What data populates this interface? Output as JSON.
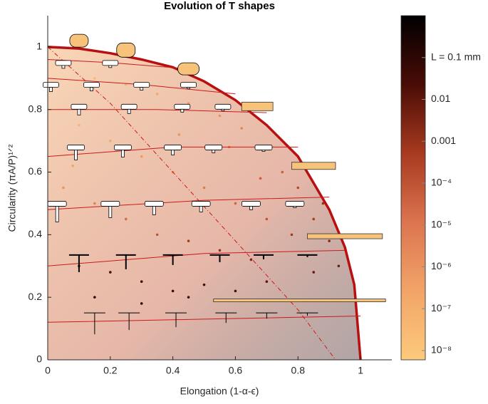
{
  "chart_data": {
    "type": "scatter",
    "title": "Evolution of T shapes",
    "xlabel": "Elongation (1-α-ϵ)",
    "ylabel": "Circularity (πA/P)¹ᐟ²",
    "xlim": [
      0,
      1.1
    ],
    "ylim": [
      0,
      1.1
    ],
    "xticks": [
      0,
      0.2,
      0.4,
      0.6,
      0.8,
      1
    ],
    "yticks": [
      0,
      0.2,
      0.4,
      0.6,
      0.8,
      1
    ],
    "x": [
      0.05,
      0.15,
      0.25,
      0.35,
      0.45,
      0.55,
      0.62,
      0.7,
      0.75,
      0.8,
      0.85,
      0.9,
      0.93,
      0.1,
      0.2,
      0.3,
      0.4,
      0.5,
      0.6,
      0.7,
      0.78,
      0.05,
      0.15,
      0.25,
      0.35,
      0.45,
      0.55,
      0.65,
      0.1,
      0.2,
      0.3,
      0.4,
      0.5,
      0.6,
      0.7,
      0.85,
      0.15,
      0.3,
      0.45,
      0.08,
      0.58,
      0.68,
      0.42,
      0.88
    ],
    "y": [
      0.95,
      0.9,
      0.88,
      0.85,
      0.82,
      0.78,
      0.74,
      0.68,
      0.6,
      0.55,
      0.45,
      0.38,
      0.3,
      0.75,
      0.7,
      0.65,
      0.6,
      0.55,
      0.5,
      0.45,
      0.4,
      0.55,
      0.5,
      0.45,
      0.4,
      0.38,
      0.35,
      0.32,
      0.3,
      0.28,
      0.25,
      0.22,
      0.24,
      0.22,
      0.25,
      0.28,
      0.2,
      0.18,
      0.2,
      0.62,
      0.68,
      0.58,
      0.72,
      0.5
    ],
    "color_values": [
      1e-08,
      3e-08,
      1e-07,
      2e-07,
      5e-07,
      1e-06,
      3e-06,
      1e-05,
      5e-05,
      0.0002,
      0.0005,
      0.002,
      0.005,
      5e-08,
      2e-07,
      6e-07,
      2e-06,
      8e-06,
      3e-05,
      0.0001,
      0.0006,
      1e-06,
      4e-06,
      2e-05,
      0.0001,
      0.0005,
      0.001,
      0.003,
      0.01,
      0.02,
      0.03,
      0.05,
      0.03,
      0.02,
      0.01,
      0.008,
      0.1,
      0.08,
      0.05,
      3e-07,
      5e-06,
      4e-05,
      8e-07,
      0.001
    ],
    "colormap": [
      "#fcca7c",
      "#f2a468",
      "#dc7450",
      "#a83a20",
      "#4a0c06",
      "#000000"
    ],
    "clim": [
      6e-09,
      1
    ],
    "color_log": true,
    "cticks": [
      {
        "value": 0.1,
        "label": "L = 0.1 mm"
      },
      0.01,
      0.001,
      {
        "value": 0.0001,
        "label": "10⁻⁴"
      },
      {
        "value": 1e-05,
        "label": "10⁻⁵"
      },
      {
        "value": 1e-06,
        "label": "10⁻⁶"
      },
      {
        "value": 1e-07,
        "label": "10⁻⁷"
      },
      {
        "value": 1e-08,
        "label": "10⁻⁸"
      }
    ],
    "curves": [
      {
        "color": "#b81010",
        "width": 3.5,
        "x": [
          0,
          0.1,
          0.2,
          0.3,
          0.4,
          0.5,
          0.6,
          0.7,
          0.8,
          0.9,
          0.95,
          0.98,
          1
        ],
        "y": [
          1,
          0.995,
          0.98,
          0.96,
          0.935,
          0.89,
          0.83,
          0.75,
          0.65,
          0.48,
          0.36,
          0.24,
          0
        ]
      },
      {
        "color": "#cc1a1a",
        "width": 1,
        "dash": true,
        "x": [
          0,
          0.2,
          0.4,
          0.6,
          0.8,
          0.92
        ],
        "y": [
          1,
          0.82,
          0.6,
          0.38,
          0.16,
          0
        ]
      },
      {
        "color": "#cc1a1a",
        "width": 1,
        "x": [
          0,
          0.5,
          1
        ],
        "y": [
          0.12,
          0.13,
          0.14
        ]
      },
      {
        "color": "#cc1a1a",
        "width": 1,
        "x": [
          0,
          0.5,
          0.95
        ],
        "y": [
          0.3,
          0.34,
          0.35
        ]
      },
      {
        "color": "#cc1a1a",
        "width": 1,
        "x": [
          0,
          0.5,
          0.9
        ],
        "y": [
          0.48,
          0.51,
          0.52
        ]
      },
      {
        "color": "#cc1a1a",
        "width": 1,
        "x": [
          0,
          0.4,
          0.8
        ],
        "y": [
          0.65,
          0.68,
          0.68
        ]
      },
      {
        "color": "#cc1a1a",
        "width": 1,
        "x": [
          0,
          0.35,
          0.7
        ],
        "y": [
          0.8,
          0.8,
          0.79
        ]
      },
      {
        "color": "#cc1a1a",
        "width": 1,
        "x": [
          0,
          0.3,
          0.6
        ],
        "y": [
          0.9,
          0.88,
          0.85
        ]
      },
      {
        "color": "#cc1a1a",
        "width": 1,
        "x": [
          0,
          0.2,
          0.45
        ],
        "y": [
          0.96,
          0.95,
          0.93
        ]
      }
    ]
  }
}
